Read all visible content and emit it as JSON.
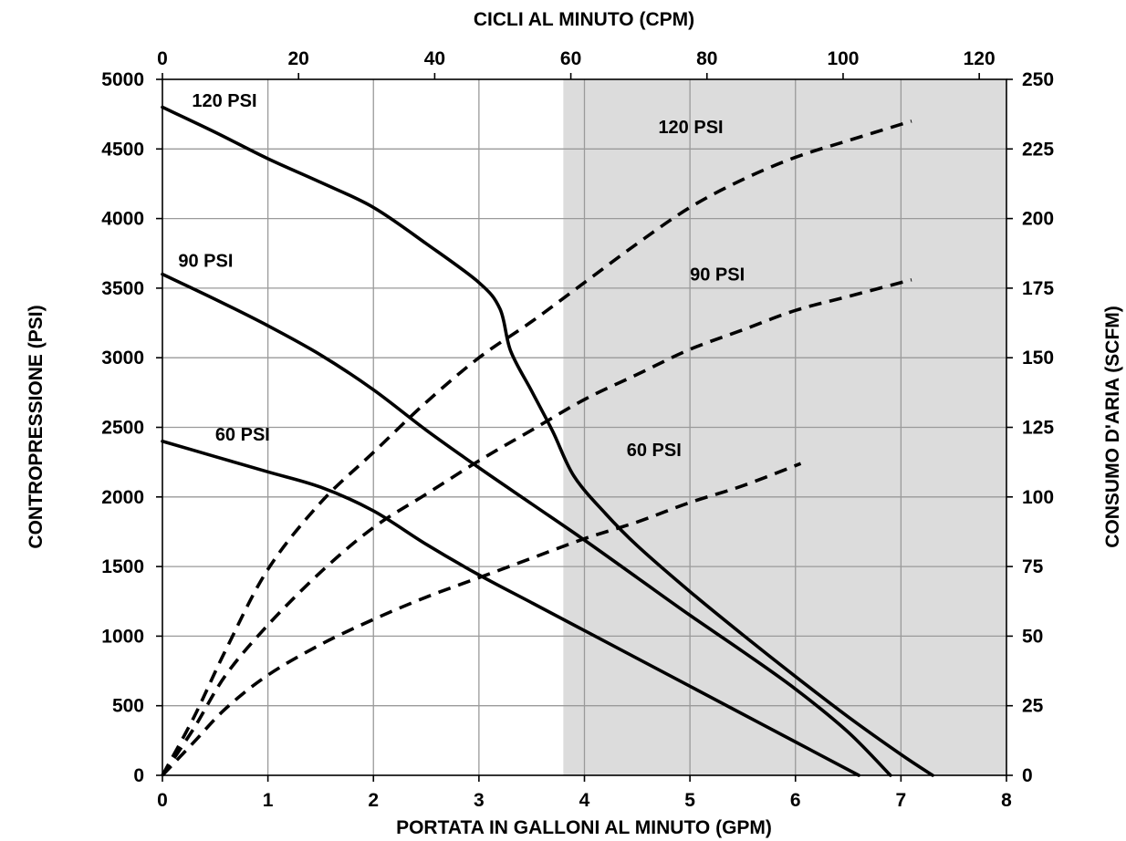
{
  "chart_data": {
    "type": "line",
    "title": "",
    "xlabel": "PORTATA IN GALLONI AL MINUTO (GPM)",
    "x2label": "CICLI AL MINUTO (CPM)",
    "ylabel": "CONTROPRESSIONE (PSI)",
    "y2label": "CONSUMO D'ARIA (SCFM)",
    "xlim": [
      0,
      8
    ],
    "x2lim": [
      0,
      124
    ],
    "ylim": [
      0,
      5000
    ],
    "y2lim": [
      0,
      250
    ],
    "x_ticks": [
      "0",
      "1",
      "2",
      "3",
      "4",
      "5",
      "6",
      "7",
      "8"
    ],
    "x2_ticks": [
      "0",
      "20",
      "40",
      "60",
      "80",
      "100",
      "120"
    ],
    "y_ticks": [
      "0",
      "500",
      "1000",
      "1500",
      "2000",
      "2500",
      "3000",
      "3500",
      "4000",
      "4500",
      "5000"
    ],
    "y2_ticks": [
      "0",
      "25",
      "50",
      "75",
      "100",
      "125",
      "150",
      "175",
      "200",
      "225",
      "250"
    ],
    "grid": true,
    "shaded_region": {
      "x_from": 3.8,
      "x_to": 8,
      "color": "#dcdcdc"
    },
    "line_color": "#000000",
    "pressure_series": [
      {
        "label": "120 PSI",
        "style": "solid",
        "axis": "left",
        "x": [
          0,
          0.5,
          1,
          1.5,
          2,
          2.5,
          3,
          3.2,
          3.3,
          3.5,
          3.7,
          3.9,
          4.2,
          4.5,
          5,
          5.5,
          6,
          6.5,
          7,
          7.3
        ],
        "y": [
          4800,
          4620,
          4430,
          4260,
          4080,
          3820,
          3540,
          3350,
          3050,
          2760,
          2470,
          2150,
          1880,
          1650,
          1320,
          1010,
          710,
          420,
          150,
          0
        ]
      },
      {
        "label": "90 PSI",
        "style": "solid",
        "axis": "left",
        "x": [
          0,
          0.5,
          1,
          1.5,
          2,
          2.5,
          3,
          3.5,
          4,
          4.5,
          5,
          5.5,
          6,
          6.5,
          6.9
        ],
        "y": [
          3600,
          3420,
          3230,
          3020,
          2770,
          2480,
          2210,
          1950,
          1690,
          1420,
          1150,
          890,
          620,
          310,
          0
        ]
      },
      {
        "label": "60 PSI",
        "style": "solid",
        "axis": "left",
        "x": [
          0,
          0.5,
          1,
          1.5,
          2,
          2.5,
          3,
          3.5,
          4,
          4.5,
          5,
          5.5,
          6,
          6.6
        ],
        "y": [
          2400,
          2290,
          2180,
          2070,
          1900,
          1660,
          1440,
          1240,
          1040,
          840,
          640,
          440,
          240,
          0
        ]
      }
    ],
    "air_series": [
      {
        "label": "120 PSI",
        "style": "dashed",
        "axis": "right",
        "x": [
          0,
          0.3,
          0.6,
          1,
          1.5,
          2,
          2.5,
          3,
          3.5,
          4,
          4.5,
          5,
          5.5,
          6,
          6.5,
          7.1
        ],
        "y": [
          0,
          21,
          45,
          74,
          98,
          116,
          134,
          150,
          163,
          177,
          191,
          204,
          214,
          222,
          228,
          235
        ]
      },
      {
        "label": "90 PSI",
        "style": "dashed",
        "axis": "right",
        "x": [
          0,
          0.3,
          0.6,
          1,
          1.5,
          2,
          2.5,
          3,
          3.5,
          4,
          4.5,
          5,
          5.5,
          6,
          6.5,
          7.1
        ],
        "y": [
          0,
          17,
          36,
          54,
          73,
          89,
          101,
          113,
          124,
          135,
          144,
          153,
          160,
          167,
          172,
          178
        ]
      },
      {
        "label": "60 PSI",
        "style": "dashed",
        "axis": "right",
        "x": [
          0,
          0.3,
          0.6,
          1,
          1.5,
          2,
          2.5,
          3,
          3.5,
          4,
          4.5,
          5,
          5.5,
          6.05
        ],
        "y": [
          0,
          12,
          24,
          36,
          47,
          56,
          64,
          71,
          78,
          85,
          91,
          98,
          104,
          112
        ]
      }
    ],
    "annotations": [
      {
        "text": "120 PSI",
        "x": 0.28,
        "y": 4850,
        "axis": "left"
      },
      {
        "text": "90 PSI",
        "x": 0.15,
        "y": 3700,
        "axis": "left"
      },
      {
        "text": "60 PSI",
        "x": 0.5,
        "y": 2450,
        "axis": "left"
      },
      {
        "text": "120 PSI",
        "x": 4.7,
        "y": 233,
        "axis": "right"
      },
      {
        "text": "90 PSI",
        "x": 5.0,
        "y": 180,
        "axis": "right"
      },
      {
        "text": "60 PSI",
        "x": 4.4,
        "y": 117,
        "axis": "right"
      }
    ]
  }
}
